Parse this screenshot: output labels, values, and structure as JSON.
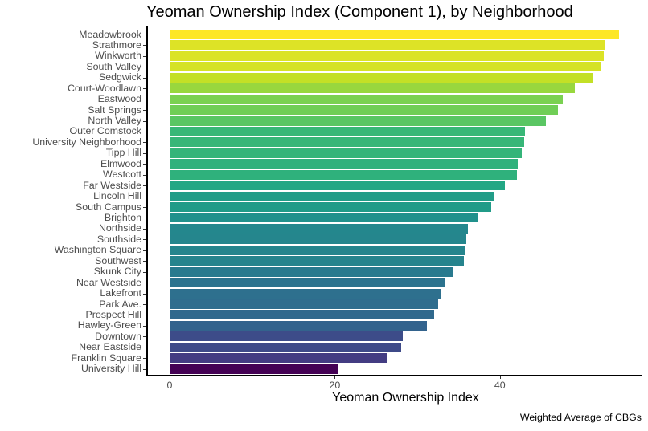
{
  "chart_data": {
    "type": "bar",
    "orientation": "horizontal",
    "title": "Yeoman Ownership Index (Component 1), by Neighborhood",
    "xlabel": "Yeoman Ownership Index",
    "ylabel": "",
    "caption": "Weighted Average of CBGs",
    "xlim": [
      0,
      57
    ],
    "xticks": [
      0,
      20,
      40
    ],
    "grid": false,
    "legend": null,
    "color_scale": "viridis (fill by value)",
    "categories": [
      "Meadowbrook",
      "Strathmore",
      "Winkworth",
      "South Valley",
      "Sedgwick",
      "Court-Woodlawn",
      "Eastwood",
      "Salt Springs",
      "North Valley",
      "Outer Comstock",
      "University Neighborhood",
      "Tipp Hill",
      "Elmwood",
      "Westcott",
      "Far Westside",
      "Lincoln Hill",
      "South Campus",
      "Brighton",
      "Northside",
      "Southside",
      "Washington Square",
      "Southwest",
      "Skunk City",
      "Near Westside",
      "Lakefront",
      "Park Ave.",
      "Prospect Hill",
      "Hawley-Green",
      "Downtown",
      "Near Eastside",
      "Franklin Square",
      "University Hill"
    ],
    "values": [
      54.4,
      52.7,
      52.6,
      52.3,
      51.3,
      49.1,
      47.6,
      47.0,
      45.6,
      43.0,
      42.9,
      42.6,
      42.2,
      42.1,
      40.6,
      39.2,
      38.9,
      37.4,
      36.1,
      35.9,
      35.8,
      35.6,
      34.3,
      33.3,
      32.9,
      32.5,
      32.0,
      31.2,
      28.2,
      28.0,
      26.3,
      20.4
    ]
  }
}
